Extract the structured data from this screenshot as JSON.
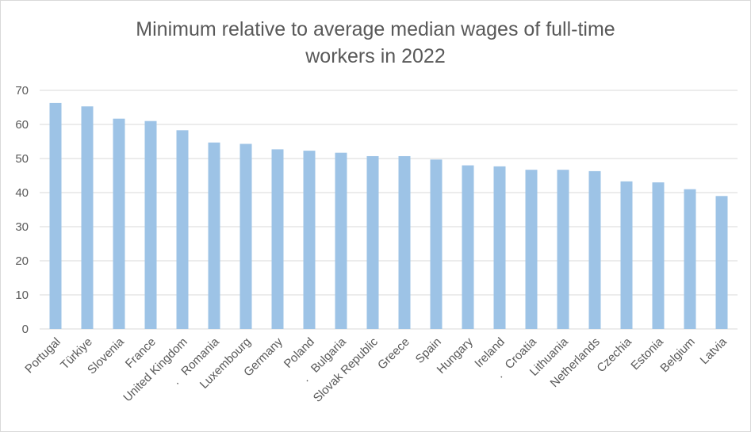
{
  "chart_data": {
    "type": "bar",
    "title_lines": [
      "Minimum relative to average median wages of full-time",
      "workers in 2022"
    ],
    "categories": [
      "Portugal",
      "Türkiye",
      "Slovenia",
      "France",
      "United Kingdom",
      "Romania",
      "Luxembourg",
      "Germany",
      "Poland",
      "Bulgaria",
      "Slovak Republic",
      "Greece",
      "Spain",
      "Hungary",
      "Ireland",
      "Croatia",
      "Lithuania",
      "Netherlands",
      "Czechia",
      "Estonia",
      "Belgium",
      "Latvia"
    ],
    "category_prefix_marks": [
      "",
      "",
      "",
      "",
      "",
      ".",
      "",
      "",
      "",
      ".",
      "",
      "",
      "",
      "",
      "",
      ".",
      "",
      "",
      "",
      "",
      "",
      ""
    ],
    "values": [
      66.3,
      65.3,
      61.7,
      61.0,
      58.3,
      54.7,
      54.3,
      52.7,
      52.3,
      51.7,
      50.7,
      50.7,
      49.7,
      48.0,
      47.7,
      46.7,
      46.7,
      46.3,
      43.3,
      43.0,
      41.0,
      39.0
    ],
    "yticks": [
      0,
      10,
      20,
      30,
      40,
      50,
      60,
      70
    ],
    "ylim": [
      0,
      70
    ],
    "grid": true,
    "legend": "none",
    "bar_color": "#9dc3e6",
    "grid_color": "#d9d9d9",
    "text_color": "#595959"
  }
}
